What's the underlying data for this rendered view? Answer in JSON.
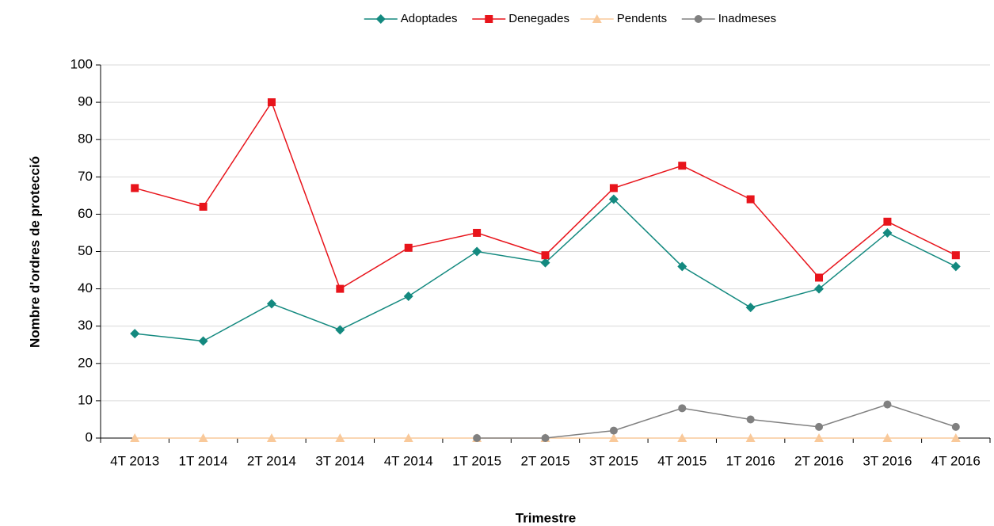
{
  "chart_data": {
    "type": "line",
    "categories": [
      "4T 2013",
      "1T 2014",
      "2T 2014",
      "3T 2014",
      "4T 2014",
      "1T 2015",
      "2T 2015",
      "3T 2015",
      "4T 2015",
      "1T 2016",
      "2T 2016",
      "3T 2016",
      "4T 2016"
    ],
    "series": [
      {
        "name": "Adoptades",
        "color": "#13897f",
        "marker": "diamond",
        "values": [
          28,
          26,
          36,
          29,
          38,
          50,
          47,
          64,
          46,
          35,
          40,
          55,
          46
        ]
      },
      {
        "name": "Denegades",
        "color": "#e8141b",
        "marker": "square",
        "values": [
          67,
          62,
          90,
          40,
          51,
          55,
          49,
          67,
          73,
          64,
          43,
          58,
          49
        ]
      },
      {
        "name": "Pendents",
        "color": "#f9c99a",
        "marker": "triangle",
        "values": [
          0,
          0,
          0,
          0,
          0,
          0,
          0,
          0,
          0,
          0,
          0,
          0,
          0
        ]
      },
      {
        "name": "Inadmeses",
        "color": "#808080",
        "marker": "circle",
        "values": [
          null,
          null,
          null,
          null,
          null,
          0,
          0,
          2,
          8,
          5,
          3,
          9,
          3
        ]
      }
    ],
    "ylim": [
      0,
      100
    ],
    "yticks": [
      0,
      10,
      20,
      30,
      40,
      50,
      60,
      70,
      80,
      90,
      100
    ],
    "y_label": "Nombre d'ordres de protecció",
    "x_label": "Trimestre",
    "grid": true,
    "legend": "top"
  }
}
